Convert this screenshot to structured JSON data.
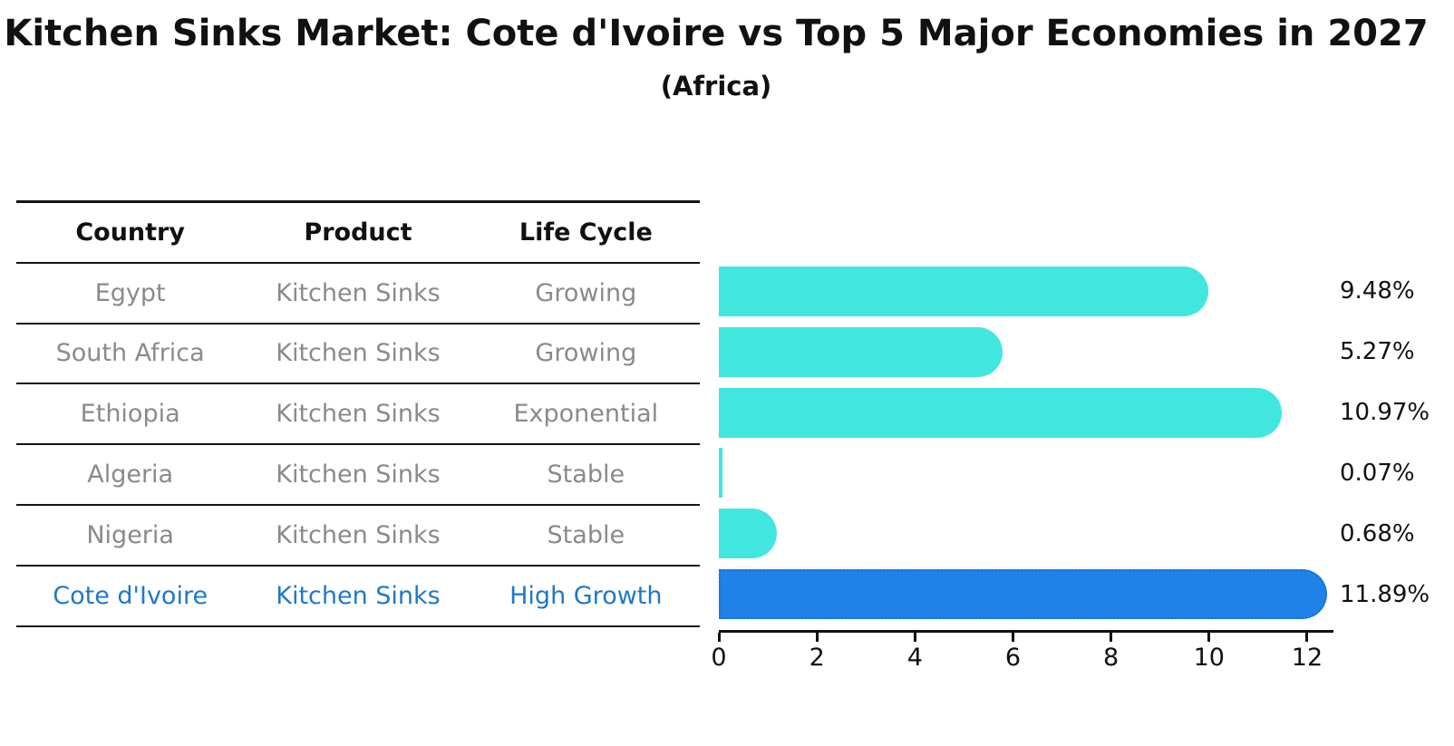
{
  "header": {
    "title": "Kitchen Sinks Market: Cote d'Ivoire vs Top 5 Major Economies in 2027",
    "subtitle": "(Africa)"
  },
  "table": {
    "columns": [
      "Country",
      "Product",
      "Life Cycle"
    ],
    "rows": [
      {
        "country": "Egypt",
        "product": "Kitchen Sinks",
        "life_cycle": "Growing",
        "highlight": false
      },
      {
        "country": "South Africa",
        "product": "Kitchen Sinks",
        "life_cycle": "Growing",
        "highlight": false
      },
      {
        "country": "Ethiopia",
        "product": "Kitchen Sinks",
        "life_cycle": "Exponential",
        "highlight": false
      },
      {
        "country": "Algeria",
        "product": "Kitchen Sinks",
        "life_cycle": "Stable",
        "highlight": false
      },
      {
        "country": "Nigeria",
        "product": "Kitchen Sinks",
        "life_cycle": "Stable",
        "highlight": false
      },
      {
        "country": "Cote d'Ivoire",
        "product": "Kitchen Sinks",
        "life_cycle": "High Growth",
        "highlight": true
      }
    ]
  },
  "chart_data": {
    "type": "bar",
    "orientation": "horizontal",
    "title": "Kitchen Sinks Market: Cote d'Ivoire vs Top 5 Major Economies in 2027",
    "subtitle": "(Africa)",
    "categories": [
      "Egypt",
      "South Africa",
      "Ethiopia",
      "Algeria",
      "Nigeria",
      "Cote d'Ivoire"
    ],
    "values": [
      9.48,
      5.27,
      10.97,
      0.07,
      0.68,
      11.89
    ],
    "value_labels": [
      "9.48%",
      "5.27%",
      "10.97%",
      "0.07%",
      "0.68%",
      "11.89%"
    ],
    "x_ticks": [
      0,
      2,
      4,
      6,
      8,
      10,
      12
    ],
    "xlim": [
      0,
      12.5
    ],
    "grid": false,
    "legend": "none",
    "bar_color": "#41E7DF",
    "highlight_color": "#1E82E8",
    "highlight_index": 5,
    "highlight_edge_style": "dotted"
  },
  "colors": {
    "text_primary": "#111111",
    "text_muted": "#8a8a8a",
    "text_highlight": "#1f78c8",
    "bar": "#41E7DF",
    "bar_highlight": "#1E82E8"
  }
}
